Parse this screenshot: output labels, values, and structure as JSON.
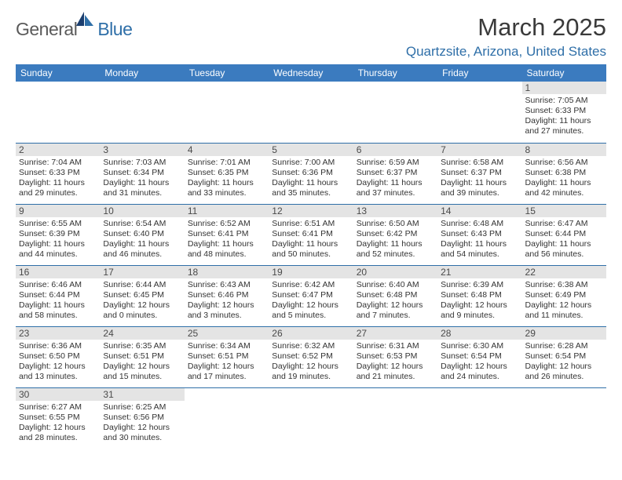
{
  "logo": {
    "part1": "General",
    "part2": "Blue"
  },
  "title": "March 2025",
  "location": "Quartzsite, Arizona, United States",
  "colors": {
    "header_bg": "#3b7bbf",
    "accent": "#2f6fa8",
    "daynum_bg": "#e4e4e4",
    "text": "#333333"
  },
  "weekdays": [
    "Sunday",
    "Monday",
    "Tuesday",
    "Wednesday",
    "Thursday",
    "Friday",
    "Saturday"
  ],
  "weeks": [
    [
      {
        "n": "",
        "sr": "",
        "ss": "",
        "dl": ""
      },
      {
        "n": "",
        "sr": "",
        "ss": "",
        "dl": ""
      },
      {
        "n": "",
        "sr": "",
        "ss": "",
        "dl": ""
      },
      {
        "n": "",
        "sr": "",
        "ss": "",
        "dl": ""
      },
      {
        "n": "",
        "sr": "",
        "ss": "",
        "dl": ""
      },
      {
        "n": "",
        "sr": "",
        "ss": "",
        "dl": ""
      },
      {
        "n": "1",
        "sr": "Sunrise: 7:05 AM",
        "ss": "Sunset: 6:33 PM",
        "dl": "Daylight: 11 hours and 27 minutes."
      }
    ],
    [
      {
        "n": "2",
        "sr": "Sunrise: 7:04 AM",
        "ss": "Sunset: 6:33 PM",
        "dl": "Daylight: 11 hours and 29 minutes."
      },
      {
        "n": "3",
        "sr": "Sunrise: 7:03 AM",
        "ss": "Sunset: 6:34 PM",
        "dl": "Daylight: 11 hours and 31 minutes."
      },
      {
        "n": "4",
        "sr": "Sunrise: 7:01 AM",
        "ss": "Sunset: 6:35 PM",
        "dl": "Daylight: 11 hours and 33 minutes."
      },
      {
        "n": "5",
        "sr": "Sunrise: 7:00 AM",
        "ss": "Sunset: 6:36 PM",
        "dl": "Daylight: 11 hours and 35 minutes."
      },
      {
        "n": "6",
        "sr": "Sunrise: 6:59 AM",
        "ss": "Sunset: 6:37 PM",
        "dl": "Daylight: 11 hours and 37 minutes."
      },
      {
        "n": "7",
        "sr": "Sunrise: 6:58 AM",
        "ss": "Sunset: 6:37 PM",
        "dl": "Daylight: 11 hours and 39 minutes."
      },
      {
        "n": "8",
        "sr": "Sunrise: 6:56 AM",
        "ss": "Sunset: 6:38 PM",
        "dl": "Daylight: 11 hours and 42 minutes."
      }
    ],
    [
      {
        "n": "9",
        "sr": "Sunrise: 6:55 AM",
        "ss": "Sunset: 6:39 PM",
        "dl": "Daylight: 11 hours and 44 minutes."
      },
      {
        "n": "10",
        "sr": "Sunrise: 6:54 AM",
        "ss": "Sunset: 6:40 PM",
        "dl": "Daylight: 11 hours and 46 minutes."
      },
      {
        "n": "11",
        "sr": "Sunrise: 6:52 AM",
        "ss": "Sunset: 6:41 PM",
        "dl": "Daylight: 11 hours and 48 minutes."
      },
      {
        "n": "12",
        "sr": "Sunrise: 6:51 AM",
        "ss": "Sunset: 6:41 PM",
        "dl": "Daylight: 11 hours and 50 minutes."
      },
      {
        "n": "13",
        "sr": "Sunrise: 6:50 AM",
        "ss": "Sunset: 6:42 PM",
        "dl": "Daylight: 11 hours and 52 minutes."
      },
      {
        "n": "14",
        "sr": "Sunrise: 6:48 AM",
        "ss": "Sunset: 6:43 PM",
        "dl": "Daylight: 11 hours and 54 minutes."
      },
      {
        "n": "15",
        "sr": "Sunrise: 6:47 AM",
        "ss": "Sunset: 6:44 PM",
        "dl": "Daylight: 11 hours and 56 minutes."
      }
    ],
    [
      {
        "n": "16",
        "sr": "Sunrise: 6:46 AM",
        "ss": "Sunset: 6:44 PM",
        "dl": "Daylight: 11 hours and 58 minutes."
      },
      {
        "n": "17",
        "sr": "Sunrise: 6:44 AM",
        "ss": "Sunset: 6:45 PM",
        "dl": "Daylight: 12 hours and 0 minutes."
      },
      {
        "n": "18",
        "sr": "Sunrise: 6:43 AM",
        "ss": "Sunset: 6:46 PM",
        "dl": "Daylight: 12 hours and 3 minutes."
      },
      {
        "n": "19",
        "sr": "Sunrise: 6:42 AM",
        "ss": "Sunset: 6:47 PM",
        "dl": "Daylight: 12 hours and 5 minutes."
      },
      {
        "n": "20",
        "sr": "Sunrise: 6:40 AM",
        "ss": "Sunset: 6:48 PM",
        "dl": "Daylight: 12 hours and 7 minutes."
      },
      {
        "n": "21",
        "sr": "Sunrise: 6:39 AM",
        "ss": "Sunset: 6:48 PM",
        "dl": "Daylight: 12 hours and 9 minutes."
      },
      {
        "n": "22",
        "sr": "Sunrise: 6:38 AM",
        "ss": "Sunset: 6:49 PM",
        "dl": "Daylight: 12 hours and 11 minutes."
      }
    ],
    [
      {
        "n": "23",
        "sr": "Sunrise: 6:36 AM",
        "ss": "Sunset: 6:50 PM",
        "dl": "Daylight: 12 hours and 13 minutes."
      },
      {
        "n": "24",
        "sr": "Sunrise: 6:35 AM",
        "ss": "Sunset: 6:51 PM",
        "dl": "Daylight: 12 hours and 15 minutes."
      },
      {
        "n": "25",
        "sr": "Sunrise: 6:34 AM",
        "ss": "Sunset: 6:51 PM",
        "dl": "Daylight: 12 hours and 17 minutes."
      },
      {
        "n": "26",
        "sr": "Sunrise: 6:32 AM",
        "ss": "Sunset: 6:52 PM",
        "dl": "Daylight: 12 hours and 19 minutes."
      },
      {
        "n": "27",
        "sr": "Sunrise: 6:31 AM",
        "ss": "Sunset: 6:53 PM",
        "dl": "Daylight: 12 hours and 21 minutes."
      },
      {
        "n": "28",
        "sr": "Sunrise: 6:30 AM",
        "ss": "Sunset: 6:54 PM",
        "dl": "Daylight: 12 hours and 24 minutes."
      },
      {
        "n": "29",
        "sr": "Sunrise: 6:28 AM",
        "ss": "Sunset: 6:54 PM",
        "dl": "Daylight: 12 hours and 26 minutes."
      }
    ],
    [
      {
        "n": "30",
        "sr": "Sunrise: 6:27 AM",
        "ss": "Sunset: 6:55 PM",
        "dl": "Daylight: 12 hours and 28 minutes."
      },
      {
        "n": "31",
        "sr": "Sunrise: 6:25 AM",
        "ss": "Sunset: 6:56 PM",
        "dl": "Daylight: 12 hours and 30 minutes."
      },
      {
        "n": "",
        "sr": "",
        "ss": "",
        "dl": ""
      },
      {
        "n": "",
        "sr": "",
        "ss": "",
        "dl": ""
      },
      {
        "n": "",
        "sr": "",
        "ss": "",
        "dl": ""
      },
      {
        "n": "",
        "sr": "",
        "ss": "",
        "dl": ""
      },
      {
        "n": "",
        "sr": "",
        "ss": "",
        "dl": ""
      }
    ]
  ]
}
